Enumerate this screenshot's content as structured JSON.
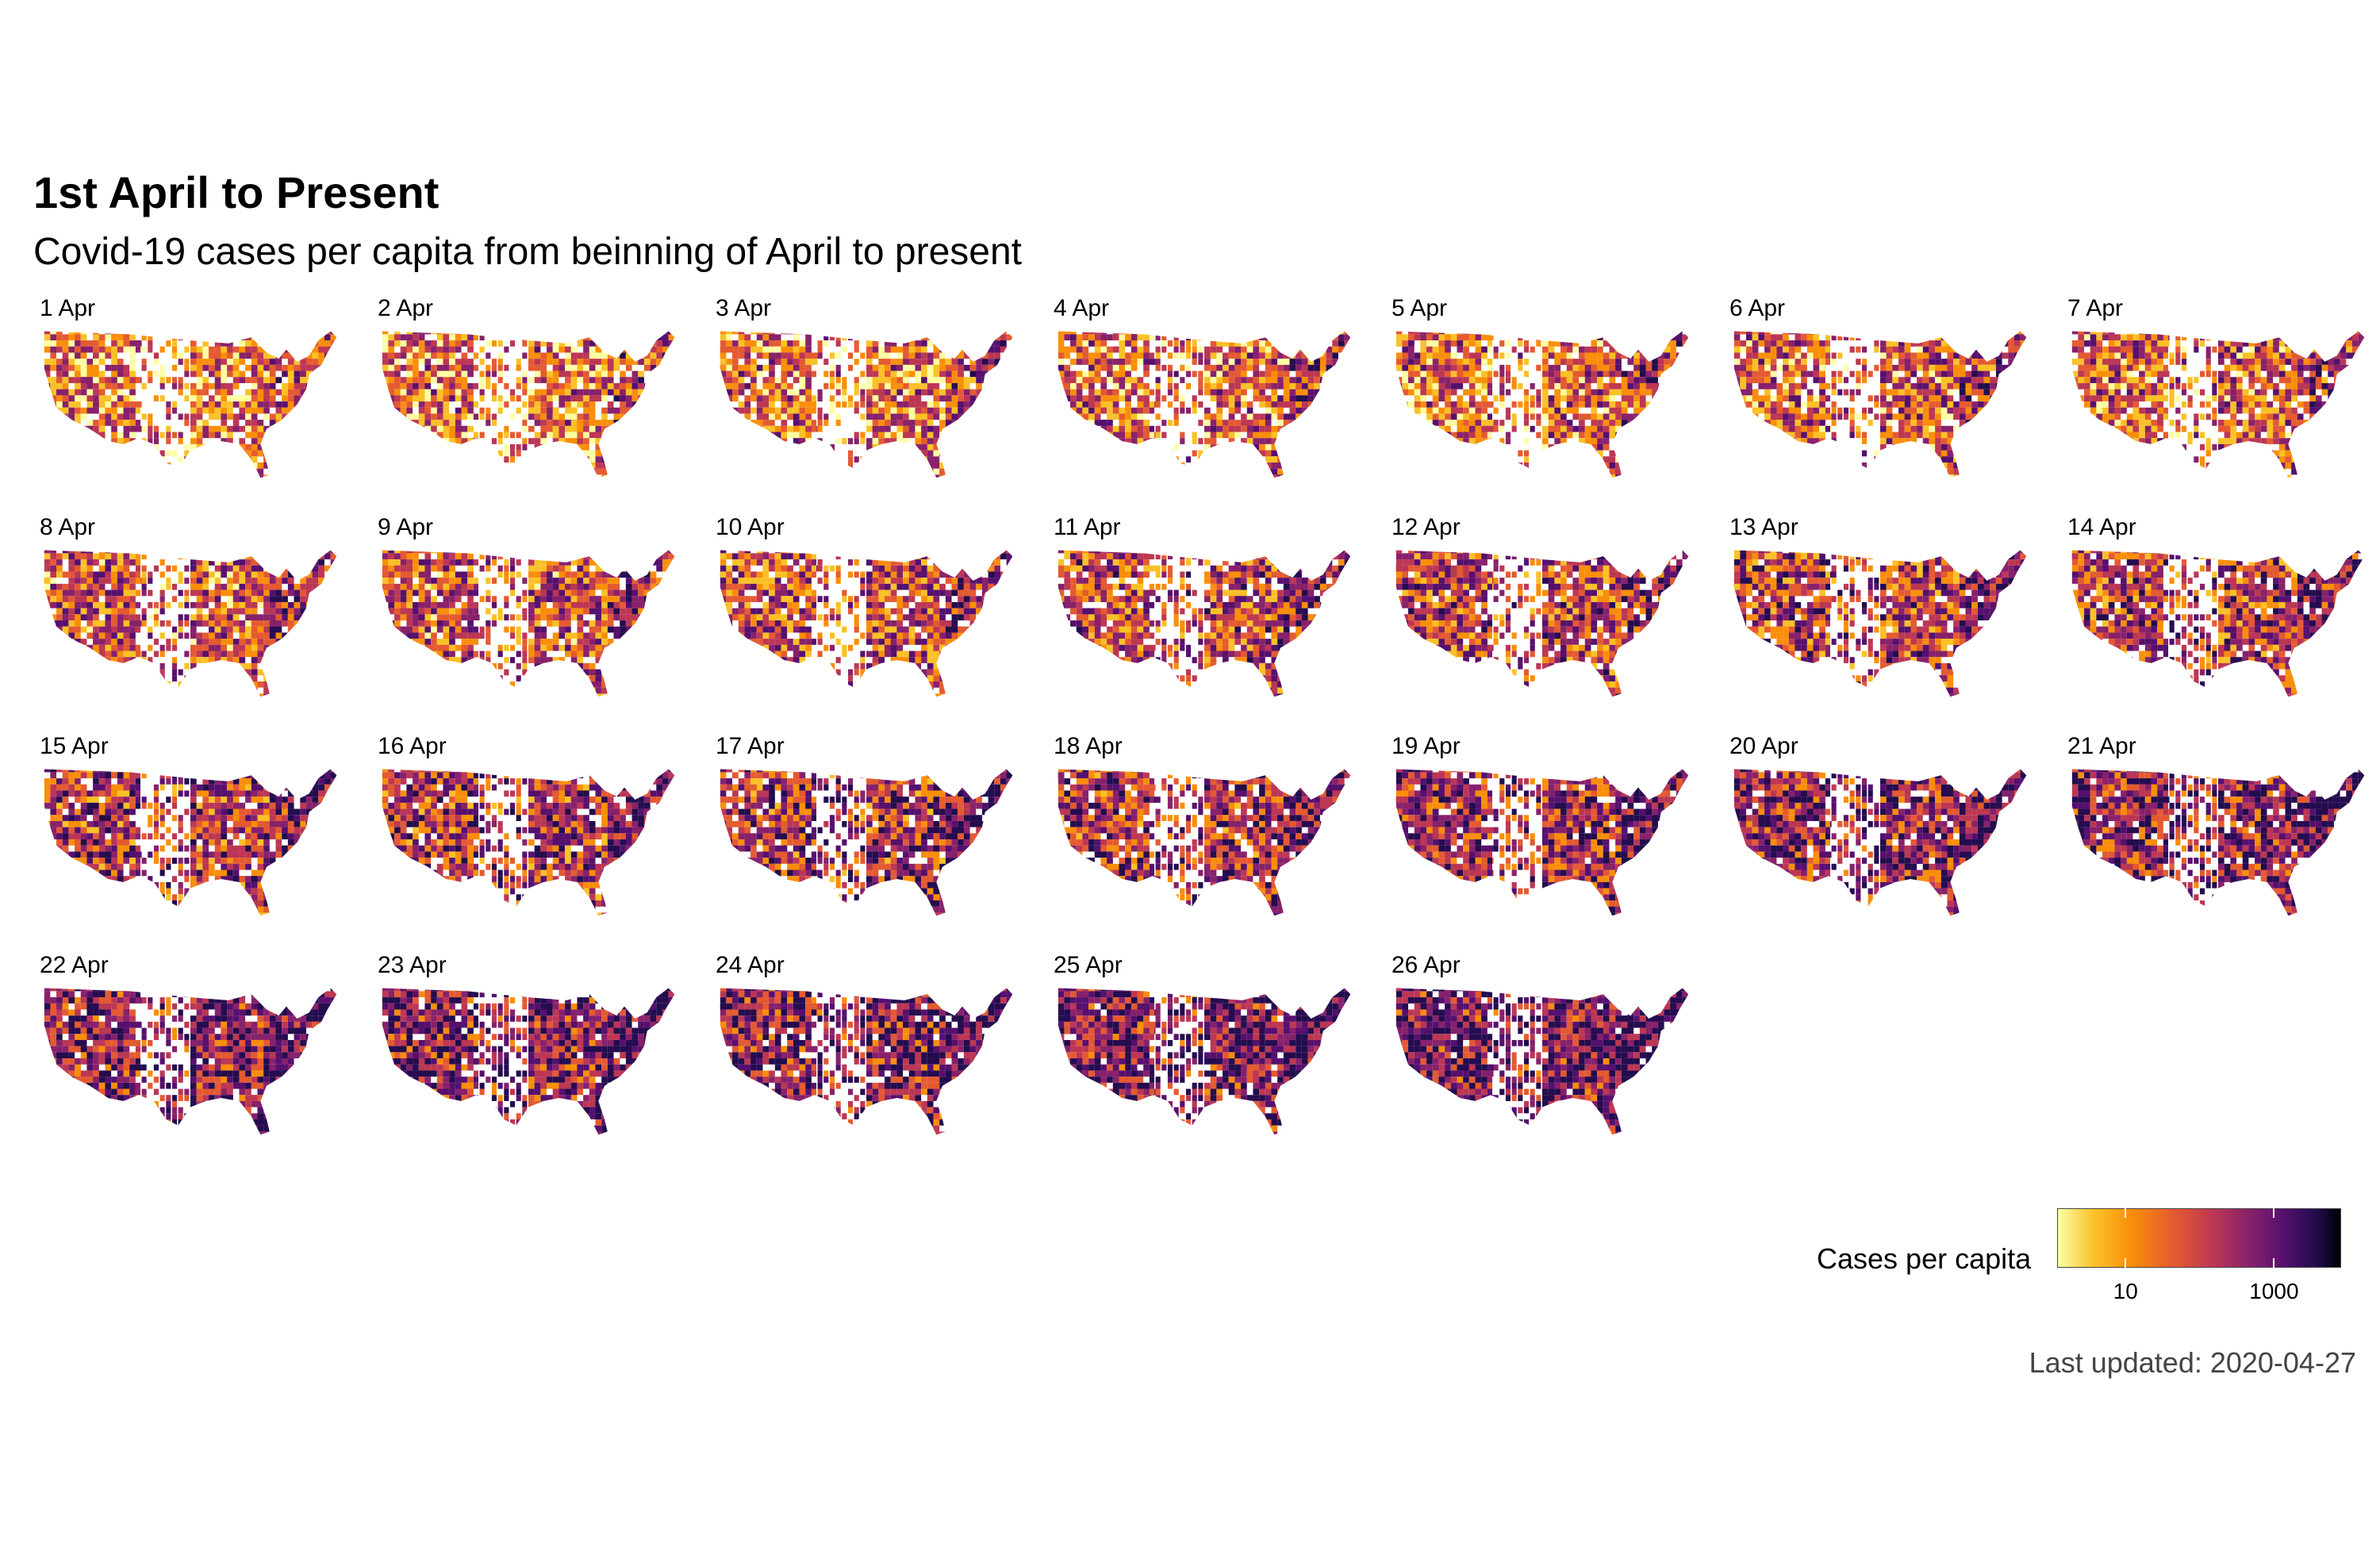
{
  "title": "1st April to Present",
  "subtitle": "Covid-19 cases per capita from beinning of April to present",
  "facets": [
    {
      "label": "1 Apr",
      "day": 1
    },
    {
      "label": "2 Apr",
      "day": 2
    },
    {
      "label": "3 Apr",
      "day": 3
    },
    {
      "label": "4 Apr",
      "day": 4
    },
    {
      "label": "5 Apr",
      "day": 5
    },
    {
      "label": "6 Apr",
      "day": 6
    },
    {
      "label": "7 Apr",
      "day": 7
    },
    {
      "label": "8 Apr",
      "day": 8
    },
    {
      "label": "9 Apr",
      "day": 9
    },
    {
      "label": "10 Apr",
      "day": 10
    },
    {
      "label": "11 Apr",
      "day": 11
    },
    {
      "label": "12 Apr",
      "day": 12
    },
    {
      "label": "13 Apr",
      "day": 13
    },
    {
      "label": "14 Apr",
      "day": 14
    },
    {
      "label": "15 Apr",
      "day": 15
    },
    {
      "label": "16 Apr",
      "day": 16
    },
    {
      "label": "17 Apr",
      "day": 17
    },
    {
      "label": "18 Apr",
      "day": 18
    },
    {
      "label": "19 Apr",
      "day": 19
    },
    {
      "label": "20 Apr",
      "day": 20
    },
    {
      "label": "21 Apr",
      "day": 21
    },
    {
      "label": "22 Apr",
      "day": 22
    },
    {
      "label": "23 Apr",
      "day": 23
    },
    {
      "label": "24 Apr",
      "day": 24
    },
    {
      "label": "25 Apr",
      "day": 25
    },
    {
      "label": "26 Apr",
      "day": 26
    }
  ],
  "legend": {
    "title": "Cases per capita",
    "scale": "log",
    "ticks": [
      {
        "label": "10",
        "value": 10
      },
      {
        "label": "1000",
        "value": 1000
      }
    ],
    "colors": [
      "#fcffa4",
      "#fac127",
      "#f98e09",
      "#e45a31",
      "#bc3754",
      "#87216b",
      "#56106e",
      "#240c4f",
      "#000004"
    ]
  },
  "caption": "Last updated: 2020-04-27"
}
